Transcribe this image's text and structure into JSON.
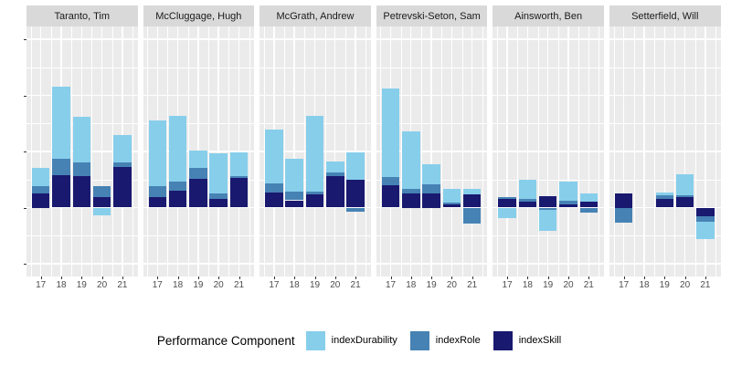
{
  "legend": {
    "title": "Performance Component",
    "items": [
      {
        "label": "indexDurability",
        "color": "#87CEEB"
      },
      {
        "label": "indexRole",
        "color": "#4682B4"
      },
      {
        "label": "indexSkill",
        "color": "#191970"
      }
    ]
  },
  "chart_data": {
    "type": "bar",
    "stacked": true,
    "facets": [
      "Taranto, Tim",
      "McCluggage, Hugh",
      "McGrath, Andrew",
      "Petrevski-Seton, Sam",
      "Ainsworth, Ben",
      "Setterfield, Will"
    ],
    "categories": [
      "17",
      "18",
      "19",
      "20",
      "21"
    ],
    "stack_order_bottom_to_top": [
      "indexSkill",
      "indexRole",
      "indexDurability"
    ],
    "series_colors": {
      "indexDurability": "#87CEEB",
      "indexRole": "#4682B4",
      "indexSkill": "#191970"
    },
    "y_axis": {
      "tick_values": [
        3,
        2,
        1,
        0,
        -1
      ],
      "tick_labels": [
        "",
        "",
        "",
        "",
        ""
      ],
      "tick_labels_visible": false,
      "range": [
        -1.22,
        3.23
      ],
      "note": "y tick labels are blank in the source image; values are in gridline units (1 = one major gridline interval)"
    },
    "values": [
      {
        "facet": "Taranto, Tim",
        "indexSkill": [
          0.25,
          0.58,
          0.56,
          0.19,
          0.73
        ],
        "indexRole": [
          0.14,
          0.29,
          0.24,
          0.19,
          0.07
        ],
        "indexDurability": [
          0.31,
          1.28,
          0.81,
          -0.14,
          0.49
        ]
      },
      {
        "facet": "McCluggage, Hugh",
        "indexSkill": [
          0.18,
          0.3,
          0.51,
          0.16,
          0.53
        ],
        "indexRole": [
          0.2,
          0.16,
          0.19,
          0.09,
          0.03
        ],
        "indexDurability": [
          1.17,
          1.17,
          0.31,
          0.72,
          0.43
        ]
      },
      {
        "facet": "McGrath, Andrew",
        "indexSkill": [
          0.27,
          0.13,
          0.23,
          0.56,
          0.49
        ],
        "indexRole": [
          0.16,
          0.16,
          0.06,
          0.07,
          -0.08
        ],
        "indexDurability": [
          0.96,
          0.58,
          1.34,
          0.19,
          0.5
        ]
      },
      {
        "facet": "Petrevski-Seton, Sam",
        "indexSkill": [
          0.4,
          0.25,
          0.25,
          0.06,
          0.23
        ],
        "indexRole": [
          0.14,
          0.08,
          0.17,
          0.03,
          -0.28
        ],
        "indexDurability": [
          1.59,
          1.03,
          0.36,
          0.25,
          0.1
        ]
      },
      {
        "facet": "Ainsworth, Ben",
        "indexSkill": [
          0.16,
          0.1,
          0.21,
          0.06,
          0.1
        ],
        "indexRole": [
          0.03,
          0.06,
          -0.04,
          0.07,
          -0.09
        ],
        "indexDurability": [
          -0.18,
          0.33,
          -0.38,
          0.34,
          0.16
        ]
      },
      {
        "facet": "Setterfield, Will",
        "indexSkill": [
          0.25,
          0.0,
          0.15,
          0.19,
          -0.16
        ],
        "indexRole": [
          -0.27,
          0.0,
          0.07,
          0.03,
          -0.09
        ],
        "indexDurability": [
          0.0,
          0.0,
          0.05,
          0.37,
          -0.31
        ]
      }
    ],
    "panel_background": "#EBEBEB",
    "strip_background": "#D9D9D9",
    "gridline_color": "#FFFFFF",
    "legend_position": "bottom"
  }
}
